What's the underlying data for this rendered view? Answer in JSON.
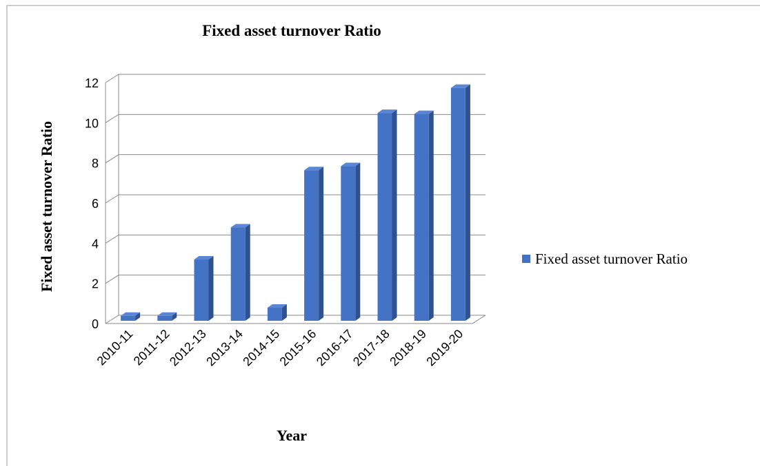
{
  "chart_data": {
    "type": "bar3d",
    "title": "Fixed asset turnover Ratio",
    "x_label": "Year",
    "y_label": "Fixed asset turnover Ratio",
    "categories": [
      "2010-11",
      "2011-12",
      "2012-13",
      "2013-14",
      "2014-15",
      "2015-16",
      "2016-17",
      "2017-18",
      "2018-19",
      "2019-20"
    ],
    "series": [
      {
        "name": "Fixed asset turnover Ratio",
        "color": "#4472c4",
        "values": [
          0.25,
          0.25,
          3.05,
          4.65,
          0.65,
          7.5,
          7.7,
          10.35,
          10.3,
          11.6
        ]
      }
    ],
    "ylim": [
      0,
      12
    ],
    "yticks": [
      0,
      2,
      4,
      6,
      8,
      10,
      12
    ],
    "grid": true,
    "legend": "right"
  }
}
